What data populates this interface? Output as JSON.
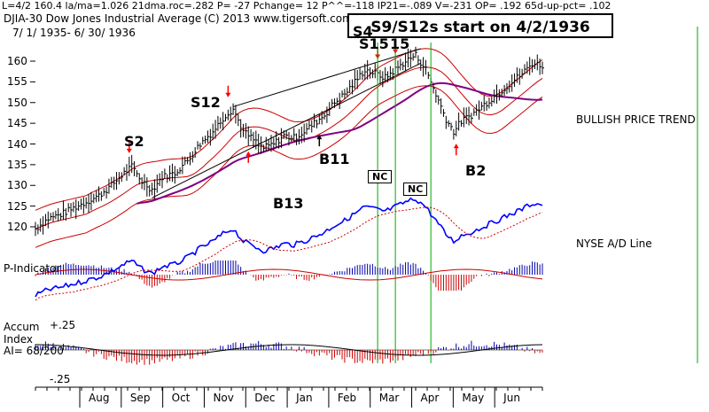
{
  "header": {
    "line1": "L=4/2  160.4   la/ma=1.026  21dma.roc=.282  P= -27  Pchange=   12  P^^=-118  IP21=-.089  V=-231  OP= .192  65d-up-pct= .102",
    "ticker": "DJIA-30  Dow Jones Industrial Average",
    "copyright": "(C) 2013 www.tigersoft.com",
    "date_range": "7/ 1/ 1935-  6/ 30/ 1936",
    "callout": "S9/S12s start on 4/2/1936"
  },
  "labels": {
    "s2": "S2",
    "s12": "S12",
    "s4_partial": "S4",
    "s15a": "S15",
    "s15b": "15",
    "b11": "B11",
    "b13": "B13",
    "b2": "B2",
    "nc1": "NC",
    "nc2": "NC",
    "bullish": "BULLISH PRICE TREND",
    "nyse_ad": "NYSE A/D Line",
    "p_indicator": "P-Indicator",
    "accum1": "Accum",
    "accum2": "Index",
    "ai": "AI= 68/200",
    "plus25": "+.25",
    "minus25": "-.25"
  },
  "colors": {
    "price_bar": "#000000",
    "band": "#cc0000",
    "ma_purple": "#800080",
    "ad_line": "#0000ff",
    "positive_hist": "#0000aa",
    "negative_hist": "#cc0000",
    "signal_line": "#00aa00",
    "signal_red": "#ff0000"
  },
  "chart_data": {
    "type": "line",
    "title": "DJIA-30 Dow Jones Industrial Average",
    "ylim": [
      117,
      163
    ],
    "yticks": [
      120,
      125,
      130,
      135,
      140,
      145,
      150,
      155,
      160
    ],
    "months": [
      "Aug",
      "Sep",
      "Oct",
      "Nov",
      "Dec",
      "Jan",
      "Feb",
      "Mar",
      "Apr",
      "May",
      "Jun"
    ],
    "price_series": [
      {
        "x": 0,
        "y": 119.5
      },
      {
        "x": 5,
        "y": 122
      },
      {
        "x": 10,
        "y": 123
      },
      {
        "x": 15,
        "y": 124.5
      },
      {
        "x": 20,
        "y": 126
      },
      {
        "x": 25,
        "y": 127.5
      },
      {
        "x": 30,
        "y": 130
      },
      {
        "x": 35,
        "y": 133
      },
      {
        "x": 38,
        "y": 134.5
      },
      {
        "x": 42,
        "y": 131
      },
      {
        "x": 46,
        "y": 129
      },
      {
        "x": 50,
        "y": 132
      },
      {
        "x": 55,
        "y": 133
      },
      {
        "x": 60,
        "y": 136
      },
      {
        "x": 65,
        "y": 140
      },
      {
        "x": 70,
        "y": 143
      },
      {
        "x": 75,
        "y": 147
      },
      {
        "x": 78,
        "y": 148.5
      },
      {
        "x": 82,
        "y": 143
      },
      {
        "x": 86,
        "y": 141
      },
      {
        "x": 90,
        "y": 139
      },
      {
        "x": 94,
        "y": 140
      },
      {
        "x": 98,
        "y": 142
      },
      {
        "x": 102,
        "y": 141.5
      },
      {
        "x": 106,
        "y": 143
      },
      {
        "x": 110,
        "y": 145
      },
      {
        "x": 114,
        "y": 147
      },
      {
        "x": 118,
        "y": 150
      },
      {
        "x": 122,
        "y": 152
      },
      {
        "x": 126,
        "y": 155
      },
      {
        "x": 130,
        "y": 158
      },
      {
        "x": 134,
        "y": 157
      },
      {
        "x": 138,
        "y": 156
      },
      {
        "x": 142,
        "y": 158
      },
      {
        "x": 146,
        "y": 160
      },
      {
        "x": 150,
        "y": 161.5
      },
      {
        "x": 154,
        "y": 158
      },
      {
        "x": 158,
        "y": 152
      },
      {
        "x": 162,
        "y": 146
      },
      {
        "x": 165,
        "y": 143
      },
      {
        "x": 168,
        "y": 145.5
      },
      {
        "x": 172,
        "y": 147
      },
      {
        "x": 176,
        "y": 149
      },
      {
        "x": 180,
        "y": 151
      },
      {
        "x": 184,
        "y": 153
      },
      {
        "x": 188,
        "y": 155
      },
      {
        "x": 192,
        "y": 157
      },
      {
        "x": 196,
        "y": 159.5
      },
      {
        "x": 200,
        "y": 159
      }
    ],
    "signals": [
      {
        "name": "S2",
        "x": 37,
        "kind": "sell"
      },
      {
        "name": "S12",
        "x": 76,
        "kind": "sell"
      },
      {
        "name": "B13",
        "x": 84,
        "kind": "buy"
      },
      {
        "name": "B11",
        "x": 112,
        "kind": "buy"
      },
      {
        "name": "S4",
        "x": 135,
        "kind": "sell"
      },
      {
        "name": "S15",
        "x": 142,
        "kind": "sell"
      },
      {
        "name": "B2",
        "x": 166,
        "kind": "buy"
      }
    ]
  }
}
